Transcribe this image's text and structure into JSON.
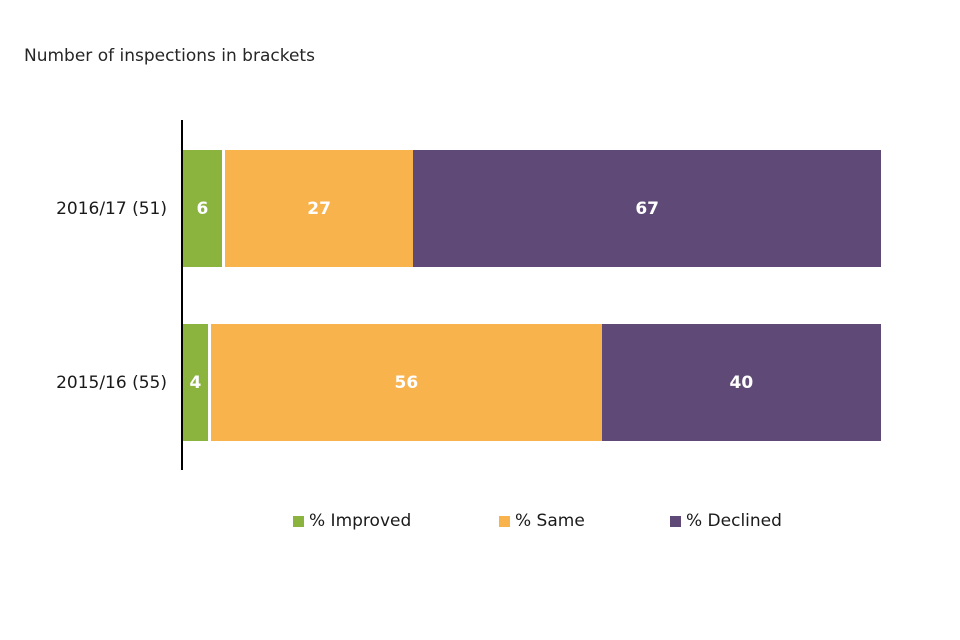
{
  "chart_data": {
    "type": "bar",
    "orientation": "horizontal",
    "stacked": true,
    "title": "Number of inspections in brackets",
    "categories": [
      "2016/17 (51)",
      "2015/16 (55)"
    ],
    "series": [
      {
        "name": "% Improved",
        "color": "#8BB43F",
        "values": [
          6,
          4
        ]
      },
      {
        "name": "% Same",
        "color": "#F9B34D",
        "values": [
          27,
          56
        ]
      },
      {
        "name": "% Declined",
        "color": "#5F4A77",
        "values": [
          67,
          40
        ]
      }
    ],
    "xlim": [
      0,
      100
    ],
    "value_label_color": "#ffffff",
    "axis_color": "#000000",
    "background_color": "#ffffff",
    "legend_position": "bottom",
    "grid": false
  }
}
